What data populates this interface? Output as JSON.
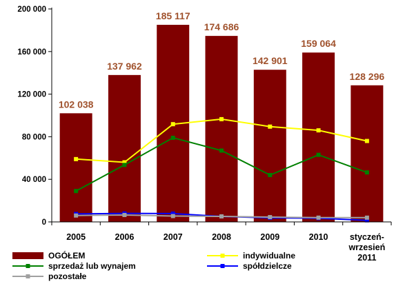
{
  "chart_data": {
    "type": "bar",
    "categories": [
      "2005",
      "2006",
      "2007",
      "2008",
      "2009",
      "2010",
      "styczeń-wrzesień 2011"
    ],
    "category_lines": [
      [
        "2005"
      ],
      [
        "2006"
      ],
      [
        "2007"
      ],
      [
        "2008"
      ],
      [
        "2009"
      ],
      [
        "2010"
      ],
      [
        "styczeń-",
        "wrzesień",
        "2011"
      ]
    ],
    "ylim": [
      0,
      200000
    ],
    "yticks": [
      0,
      40000,
      80000,
      120000,
      160000,
      200000
    ],
    "ytick_labels": [
      "0",
      "40 000",
      "80 000",
      "120 000",
      "160 000",
      "200 000"
    ],
    "grid": false,
    "legend_position": "bottom",
    "series": [
      {
        "name": "OGÓŁEM",
        "kind": "bar",
        "color": "#800000",
        "values": [
          102038,
          137962,
          185117,
          174686,
          142901,
          159064,
          128296
        ],
        "data_labels": [
          "102 038",
          "137 962",
          "185 117",
          "174 686",
          "142 901",
          "159 064",
          "128 296"
        ],
        "label_color": "#A0522D"
      },
      {
        "name": "indywidualne",
        "kind": "line",
        "color": "#FFFF00",
        "values": [
          59000,
          56000,
          91800,
          96500,
          89500,
          86000,
          76000
        ]
      },
      {
        "name": "sprzedaż lub wynajem",
        "kind": "line",
        "color": "#008000",
        "values": [
          29000,
          53500,
          79000,
          67000,
          44000,
          63000,
          46500
        ]
      },
      {
        "name": "spółdzielcze",
        "kind": "line",
        "color": "#0000FF",
        "values": [
          7500,
          8000,
          7800,
          5200,
          3800,
          3500,
          1500
        ]
      },
      {
        "name": "pozostałe",
        "kind": "line",
        "color": "#A0A0A0",
        "values": [
          6000,
          6500,
          5500,
          5200,
          4500,
          4000,
          4000
        ]
      }
    ]
  }
}
